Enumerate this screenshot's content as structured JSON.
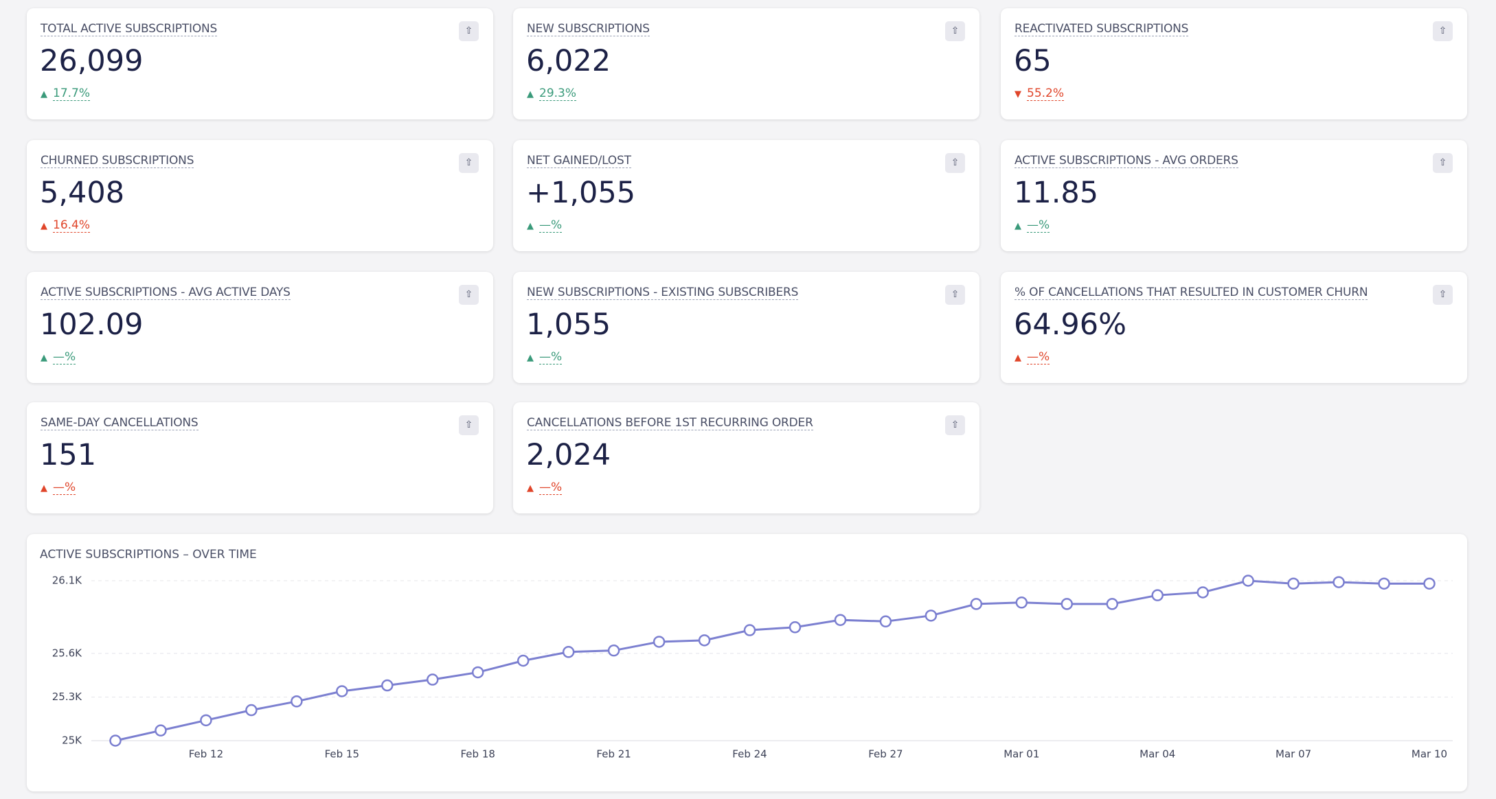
{
  "cards": [
    {
      "title": "TOTAL ACTIVE SUBSCRIPTIONS",
      "value": "26,099",
      "change": "17.7%",
      "direction": "up",
      "tone": "good"
    },
    {
      "title": "NEW SUBSCRIPTIONS",
      "value": "6,022",
      "change": "29.3%",
      "direction": "up",
      "tone": "good"
    },
    {
      "title": "REACTIVATED SUBSCRIPTIONS",
      "value": "65",
      "change": "55.2%",
      "direction": "down",
      "tone": "bad"
    },
    {
      "title": "CHURNED SUBSCRIPTIONS",
      "value": "5,408",
      "change": "16.4%",
      "direction": "up",
      "tone": "bad"
    },
    {
      "title": "NET GAINED/LOST",
      "value": "+1,055",
      "change": "—%",
      "direction": "up",
      "tone": "good"
    },
    {
      "title": "ACTIVE SUBSCRIPTIONS - AVG ORDERS",
      "value": "11.85",
      "change": "—%",
      "direction": "up",
      "tone": "good"
    },
    {
      "title": "ACTIVE SUBSCRIPTIONS - AVG ACTIVE DAYS",
      "value": "102.09",
      "change": "—%",
      "direction": "up",
      "tone": "good"
    },
    {
      "title": "NEW SUBSCRIPTIONS - EXISTING SUBSCRIBERS",
      "value": "1,055",
      "change": "—%",
      "direction": "up",
      "tone": "good"
    },
    {
      "title": "% OF CANCELLATIONS THAT RESULTED IN CUSTOMER CHURN",
      "value": "64.96%",
      "change": "—%",
      "direction": "up",
      "tone": "bad"
    },
    {
      "title": "SAME-DAY CANCELLATIONS",
      "value": "151",
      "change": "—%",
      "direction": "up",
      "tone": "bad"
    },
    {
      "title": "CANCELLATIONS BEFORE 1ST RECURRING ORDER",
      "value": "2,024",
      "change": "—%",
      "direction": "up",
      "tone": "bad"
    }
  ],
  "chart_data": {
    "type": "line",
    "title": "ACTIVE SUBSCRIPTIONS – OVER TIME",
    "color": "#7b7fd0",
    "grid": true,
    "categories": [
      null,
      null,
      "Feb 12",
      null,
      null,
      "Feb 15",
      null,
      null,
      "Feb 18",
      null,
      null,
      "Feb 21",
      null,
      null,
      "Feb 24",
      null,
      null,
      "Feb 27",
      null,
      null,
      "Mar 01",
      null,
      null,
      "Mar 04",
      null,
      null,
      "Mar 07",
      null,
      null,
      "Mar 10"
    ],
    "values": [
      25000,
      25070,
      25140,
      25210,
      25270,
      25340,
      25380,
      25420,
      25470,
      25550,
      25610,
      25620,
      25680,
      25690,
      25760,
      25780,
      25830,
      25820,
      25860,
      25940,
      25950,
      25940,
      25940,
      26000,
      26020,
      26100,
      26080,
      26090,
      26080,
      26080
    ],
    "ylim": [
      25000,
      26100
    ],
    "yticks": [
      {
        "value": 25000,
        "label": "25K"
      },
      {
        "value": 25300,
        "label": "25.3K"
      },
      {
        "value": 25600,
        "label": "25.6K"
      },
      {
        "value": 26100,
        "label": "26.1K"
      }
    ]
  }
}
